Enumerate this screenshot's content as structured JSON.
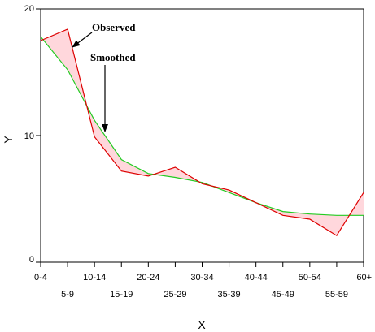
{
  "chart_data": {
    "type": "line",
    "categories": [
      "0-4",
      "5-9",
      "10-14",
      "15-19",
      "20-24",
      "25-29",
      "30-34",
      "35-39",
      "40-44",
      "45-49",
      "50-54",
      "55-59",
      "60+"
    ],
    "series": [
      {
        "name": "Observed",
        "color": "#dd0000",
        "values": [
          17.5,
          18.4,
          9.9,
          7.2,
          6.8,
          7.5,
          6.2,
          5.7,
          4.7,
          3.7,
          3.4,
          2.1,
          5.5
        ]
      },
      {
        "name": "Smoothed",
        "color": "#22cc22",
        "values": [
          17.8,
          15.2,
          11.2,
          8.1,
          7.0,
          6.7,
          6.3,
          5.5,
          4.7,
          4.0,
          3.8,
          3.7,
          3.7
        ]
      }
    ],
    "shade_color": "#ffd7dc",
    "xlabel": "X",
    "ylabel": "Y",
    "ylim": [
      0,
      20
    ],
    "yticks": [
      "0",
      "10",
      "20"
    ],
    "grid": false,
    "annotations": [
      {
        "text": "Observed",
        "points_to": "5-9"
      },
      {
        "text": "Smoothed",
        "points_to": "15-19"
      }
    ]
  }
}
